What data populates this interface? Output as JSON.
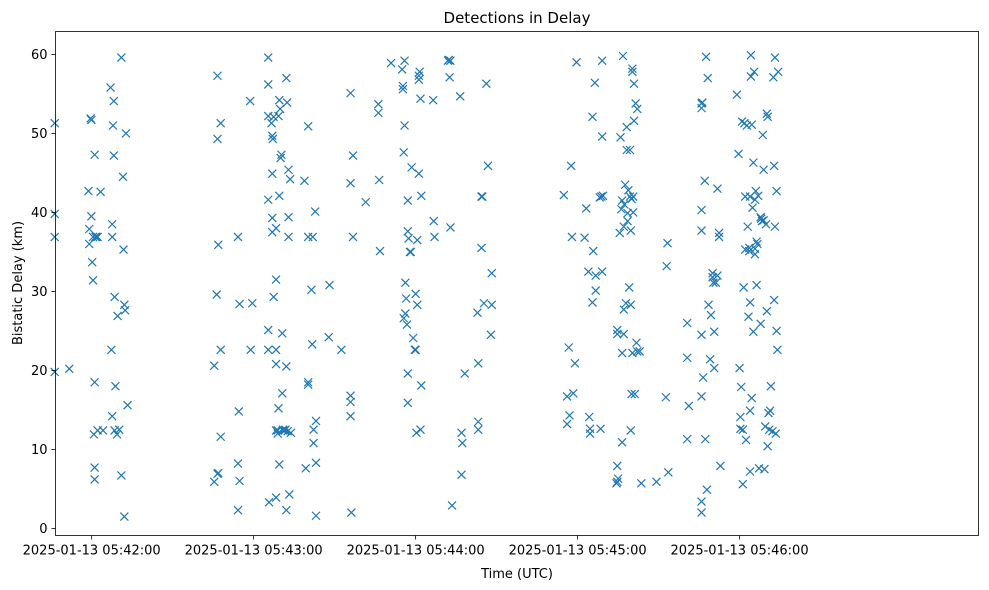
{
  "chart_data": {
    "type": "scatter",
    "title": "Detections in Delay",
    "xlabel": "Time (UTC)",
    "ylabel": "Bistatic Delay (km)",
    "marker": "x",
    "color": "#1f77b4",
    "x_unit": "seconds after 2025-01-13 05:41:00",
    "xlim": [
      46.6,
      388.5
    ],
    "ylim": [
      -0.9,
      62.9
    ],
    "x_ticks": [
      {
        "value": 60,
        "label": "2025-01-13 05:42:00"
      },
      {
        "value": 120,
        "label": "2025-01-13 05:43:00"
      },
      {
        "value": 180,
        "label": "2025-01-13 05:44:00"
      },
      {
        "value": 240,
        "label": "2025-01-13 05:45:00"
      },
      {
        "value": 300,
        "label": "2025-01-13 05:46:00"
      }
    ],
    "y_ticks": [
      {
        "value": 0,
        "label": "0"
      },
      {
        "value": 10,
        "label": "10"
      },
      {
        "value": 20,
        "label": "20"
      },
      {
        "value": 30,
        "label": "30"
      },
      {
        "value": 40,
        "label": "40"
      },
      {
        "value": 50,
        "label": "50"
      },
      {
        "value": 60,
        "label": "60"
      }
    ],
    "points": [
      [
        46.3,
        51.3
      ],
      [
        46.3,
        39.8
      ],
      [
        46.3,
        36.9
      ],
      [
        46.3,
        19.8
      ],
      [
        51.7,
        20.2
      ],
      [
        58.8,
        42.7
      ],
      [
        59.1,
        36.0
      ],
      [
        59.1,
        37.9
      ],
      [
        59.6,
        51.9
      ],
      [
        59.9,
        51.7
      ],
      [
        59.9,
        39.5
      ],
      [
        60.2,
        33.7
      ],
      [
        60.5,
        36.9
      ],
      [
        60.5,
        31.4
      ],
      [
        60.8,
        11.9
      ],
      [
        61.1,
        47.3
      ],
      [
        61.1,
        18.5
      ],
      [
        61.1,
        7.7
      ],
      [
        61.1,
        6.2
      ],
      [
        61.4,
        36.9
      ],
      [
        61.7,
        36.9
      ],
      [
        62.2,
        36.9
      ],
      [
        62.2,
        12.4
      ],
      [
        63.3,
        42.6
      ],
      [
        64.2,
        12.4
      ],
      [
        67.0,
        55.8
      ],
      [
        67.3,
        22.6
      ],
      [
        67.6,
        38.5
      ],
      [
        67.6,
        36.9
      ],
      [
        67.6,
        14.2
      ],
      [
        67.9,
        51.0
      ],
      [
        68.2,
        54.1
      ],
      [
        68.2,
        47.2
      ],
      [
        68.5,
        29.3
      ],
      [
        68.5,
        12.4
      ],
      [
        68.8,
        18.0
      ],
      [
        69.4,
        11.9
      ],
      [
        69.6,
        26.9
      ],
      [
        70.2,
        12.5
      ],
      [
        71.0,
        59.6
      ],
      [
        71.0,
        6.7
      ],
      [
        71.6,
        44.5
      ],
      [
        71.8,
        35.3
      ],
      [
        72.1,
        1.5
      ],
      [
        72.1,
        28.3
      ],
      [
        72.4,
        27.6
      ],
      [
        72.7,
        50.0
      ],
      [
        73.3,
        15.6
      ],
      [
        105.4,
        20.6
      ],
      [
        105.4,
        5.9
      ],
      [
        106.3,
        29.6
      ],
      [
        106.6,
        57.3
      ],
      [
        106.6,
        6.9
      ],
      [
        106.6,
        49.3
      ],
      [
        106.9,
        35.9
      ],
      [
        106.9,
        7.0
      ],
      [
        107.8,
        51.3
      ],
      [
        107.8,
        22.6
      ],
      [
        107.8,
        11.6
      ],
      [
        114.2,
        36.9
      ],
      [
        114.2,
        8.2
      ],
      [
        114.2,
        2.3
      ],
      [
        114.5,
        14.8
      ],
      [
        114.8,
        28.4
      ],
      [
        114.8,
        6.0
      ],
      [
        118.7,
        54.1
      ],
      [
        118.9,
        22.6
      ],
      [
        119.5,
        28.5
      ],
      [
        125.4,
        59.6
      ],
      [
        125.4,
        56.2
      ],
      [
        125.4,
        52.2
      ],
      [
        125.4,
        41.6
      ],
      [
        125.4,
        25.1
      ],
      [
        125.4,
        22.6
      ],
      [
        125.7,
        3.3
      ],
      [
        126.6,
        51.3
      ],
      [
        126.9,
        49.7
      ],
      [
        126.9,
        44.9
      ],
      [
        126.9,
        39.3
      ],
      [
        126.9,
        37.5
      ],
      [
        127.1,
        49.3
      ],
      [
        127.4,
        52.1
      ],
      [
        127.4,
        29.3
      ],
      [
        128.3,
        38.0
      ],
      [
        128.3,
        31.5
      ],
      [
        128.3,
        22.6
      ],
      [
        128.3,
        20.8
      ],
      [
        128.3,
        12.4
      ],
      [
        128.3,
        3.9
      ],
      [
        128.9,
        12.4
      ],
      [
        128.9,
        12.0
      ],
      [
        129.2,
        52.2
      ],
      [
        129.2,
        15.2
      ],
      [
        129.5,
        54.2
      ],
      [
        129.5,
        42.1
      ],
      [
        129.5,
        8.1
      ],
      [
        129.8,
        53.1
      ],
      [
        130.0,
        46.9
      ],
      [
        130.3,
        47.3
      ],
      [
        130.6,
        24.7
      ],
      [
        130.6,
        17.1
      ],
      [
        130.9,
        12.4
      ],
      [
        130.9,
        12.5
      ],
      [
        131.5,
        12.4
      ],
      [
        131.8,
        12.5
      ],
      [
        132.1,
        57.0
      ],
      [
        132.1,
        2.3
      ],
      [
        132.1,
        20.5
      ],
      [
        132.4,
        53.9
      ],
      [
        132.6,
        12.3
      ],
      [
        132.9,
        45.4
      ],
      [
        132.9,
        39.4
      ],
      [
        132.9,
        36.9
      ],
      [
        133.2,
        4.3
      ],
      [
        133.5,
        44.2
      ],
      [
        133.8,
        12.1
      ],
      [
        138.8,
        44.0
      ],
      [
        139.3,
        7.6
      ],
      [
        140.2,
        50.9
      ],
      [
        140.2,
        36.9
      ],
      [
        140.2,
        18.5
      ],
      [
        140.2,
        18.2
      ],
      [
        141.4,
        30.2
      ],
      [
        141.7,
        23.3
      ],
      [
        141.9,
        36.9
      ],
      [
        142.2,
        12.5
      ],
      [
        142.2,
        10.8
      ],
      [
        142.8,
        40.1
      ],
      [
        143.1,
        13.6
      ],
      [
        143.1,
        8.3
      ],
      [
        143.1,
        1.6
      ],
      [
        148.1,
        30.8
      ],
      [
        147.8,
        24.2
      ],
      [
        152.5,
        22.6
      ],
      [
        155.9,
        55.1
      ],
      [
        155.9,
        43.7
      ],
      [
        155.9,
        16.8
      ],
      [
        155.9,
        16.0
      ],
      [
        155.9,
        14.2
      ],
      [
        156.2,
        2.0
      ],
      [
        156.8,
        47.2
      ],
      [
        156.8,
        36.9
      ],
      [
        161.5,
        41.3
      ],
      [
        166.2,
        53.7
      ],
      [
        166.2,
        52.6
      ],
      [
        166.5,
        44.1
      ],
      [
        166.8,
        35.1
      ],
      [
        170.9,
        58.9
      ],
      [
        175.0,
        58.1
      ],
      [
        175.3,
        56.0
      ],
      [
        175.3,
        55.6
      ],
      [
        175.6,
        26.6
      ],
      [
        175.6,
        47.6
      ],
      [
        175.9,
        59.2
      ],
      [
        175.9,
        51.0
      ],
      [
        176.2,
        27.2
      ],
      [
        176.2,
        31.1
      ],
      [
        176.5,
        29.1
      ],
      [
        176.8,
        25.8
      ],
      [
        177.1,
        37.6
      ],
      [
        177.1,
        19.6
      ],
      [
        177.1,
        15.9
      ],
      [
        177.1,
        41.5
      ],
      [
        177.4,
        36.7
      ],
      [
        177.9,
        35.0
      ],
      [
        178.2,
        35.0
      ],
      [
        178.5,
        45.7
      ],
      [
        179.1,
        24.1
      ],
      [
        179.7,
        22.6
      ],
      [
        180.0,
        22.6
      ],
      [
        180.0,
        29.7
      ],
      [
        180.3,
        12.1
      ],
      [
        180.6,
        36.5
      ],
      [
        180.6,
        28.3
      ],
      [
        181.2,
        56.8
      ],
      [
        181.2,
        57.3
      ],
      [
        181.2,
        44.9
      ],
      [
        181.5,
        57.8
      ],
      [
        181.8,
        12.5
      ],
      [
        181.8,
        54.4
      ],
      [
        182.1,
        42.1
      ],
      [
        182.1,
        18.1
      ],
      [
        186.5,
        54.2
      ],
      [
        186.7,
        38.9
      ],
      [
        187.0,
        36.9
      ],
      [
        192.0,
        59.2
      ],
      [
        192.3,
        59.3
      ],
      [
        192.6,
        57.1
      ],
      [
        192.9,
        59.2
      ],
      [
        192.9,
        38.1
      ],
      [
        193.5,
        2.9
      ],
      [
        196.5,
        54.7
      ],
      [
        197.0,
        12.1
      ],
      [
        197.0,
        6.8
      ],
      [
        197.3,
        10.8
      ],
      [
        198.2,
        19.6
      ],
      [
        202.9,
        27.3
      ],
      [
        203.2,
        13.5
      ],
      [
        203.2,
        12.5
      ],
      [
        203.2,
        20.9
      ],
      [
        204.4,
        42.0
      ],
      [
        204.4,
        35.5
      ],
      [
        204.7,
        42.0
      ],
      [
        205.3,
        28.5
      ],
      [
        206.2,
        56.3
      ],
      [
        206.8,
        45.9
      ],
      [
        207.9,
        24.5
      ],
      [
        208.2,
        32.3
      ],
      [
        208.2,
        28.3
      ],
      [
        234.9,
        42.2
      ],
      [
        236.1,
        13.2
      ],
      [
        236.1,
        16.7
      ],
      [
        236.7,
        22.9
      ],
      [
        237.0,
        14.3
      ],
      [
        237.6,
        45.9
      ],
      [
        237.9,
        36.9
      ],
      [
        238.4,
        17.1
      ],
      [
        239.0,
        20.9
      ],
      [
        239.6,
        59.0
      ],
      [
        242.6,
        36.8
      ],
      [
        243.2,
        40.5
      ],
      [
        244.0,
        32.5
      ],
      [
        244.3,
        14.1
      ],
      [
        244.6,
        12.6
      ],
      [
        244.6,
        12.0
      ],
      [
        245.5,
        52.1
      ],
      [
        245.5,
        28.6
      ],
      [
        245.8,
        35.1
      ],
      [
        246.4,
        56.4
      ],
      [
        246.7,
        32.0
      ],
      [
        246.7,
        30.1
      ],
      [
        248.2,
        41.9
      ],
      [
        248.5,
        12.6
      ],
      [
        248.8,
        42.0
      ],
      [
        249.1,
        59.2
      ],
      [
        249.1,
        32.5
      ],
      [
        249.1,
        49.6
      ],
      [
        249.4,
        42.1
      ],
      [
        254.7,
        25.1
      ],
      [
        254.7,
        24.6
      ],
      [
        254.4,
        5.7
      ],
      [
        254.7,
        5.9
      ],
      [
        254.7,
        7.9
      ],
      [
        255.0,
        6.3
      ],
      [
        255.6,
        37.4
      ],
      [
        255.9,
        49.5
      ],
      [
        256.2,
        40.4
      ],
      [
        256.5,
        22.2
      ],
      [
        256.5,
        41.5
      ],
      [
        256.5,
        10.9
      ],
      [
        256.8,
        59.8
      ],
      [
        257.1,
        27.7
      ],
      [
        257.1,
        24.6
      ],
      [
        257.1,
        38.2
      ],
      [
        257.3,
        41.0
      ],
      [
        257.6,
        43.5
      ],
      [
        257.9,
        28.5
      ],
      [
        258.2,
        47.9
      ],
      [
        258.2,
        50.8
      ],
      [
        258.5,
        39.9
      ],
      [
        258.5,
        38.9
      ],
      [
        258.8,
        42.8
      ],
      [
        259.1,
        30.5
      ],
      [
        259.4,
        47.9
      ],
      [
        259.4,
        42.0
      ],
      [
        259.7,
        37.7
      ],
      [
        259.7,
        28.3
      ],
      [
        259.7,
        12.4
      ],
      [
        260.0,
        17.0
      ],
      [
        260.0,
        41.7
      ],
      [
        260.3,
        58.2
      ],
      [
        260.3,
        57.8
      ],
      [
        260.3,
        22.2
      ],
      [
        260.6,
        42.0
      ],
      [
        260.6,
        40.0
      ],
      [
        260.9,
        51.6
      ],
      [
        260.9,
        56.3
      ],
      [
        261.2,
        17.0
      ],
      [
        261.5,
        53.8
      ],
      [
        261.8,
        23.5
      ],
      [
        262.1,
        53.1
      ],
      [
        262.1,
        22.4
      ],
      [
        263.0,
        22.4
      ],
      [
        263.6,
        5.7
      ],
      [
        269.2,
        5.9
      ],
      [
        272.7,
        16.6
      ],
      [
        273.0,
        33.2
      ],
      [
        273.3,
        36.1
      ],
      [
        273.6,
        7.1
      ],
      [
        280.6,
        26.0
      ],
      [
        280.6,
        21.6
      ],
      [
        280.6,
        11.3
      ],
      [
        281.2,
        15.5
      ],
      [
        285.9,
        53.8
      ],
      [
        285.9,
        53.2
      ],
      [
        285.9,
        40.3
      ],
      [
        285.9,
        37.7
      ],
      [
        285.9,
        24.5
      ],
      [
        285.9,
        16.7
      ],
      [
        285.9,
        3.4
      ],
      [
        285.9,
        2.0
      ],
      [
        286.2,
        53.9
      ],
      [
        286.5,
        19.1
      ],
      [
        287.1,
        44.0
      ],
      [
        287.3,
        11.3
      ],
      [
        287.6,
        59.7
      ],
      [
        287.9,
        4.9
      ],
      [
        288.2,
        57.0
      ],
      [
        288.5,
        28.3
      ],
      [
        289.1,
        21.4
      ],
      [
        289.4,
        27.0
      ],
      [
        290.0,
        31.8
      ],
      [
        290.0,
        32.3
      ],
      [
        290.3,
        31.1
      ],
      [
        290.6,
        20.3
      ],
      [
        290.6,
        24.9
      ],
      [
        291.2,
        31.1
      ],
      [
        291.8,
        43.0
      ],
      [
        291.8,
        32.0
      ],
      [
        292.4,
        37.4
      ],
      [
        292.4,
        36.9
      ],
      [
        292.9,
        7.9
      ],
      [
        299.0,
        54.9
      ],
      [
        299.6,
        47.4
      ],
      [
        300.0,
        20.3
      ],
      [
        300.3,
        14.1
      ],
      [
        300.3,
        12.6
      ],
      [
        300.6,
        17.9
      ],
      [
        300.9,
        51.5
      ],
      [
        301.2,
        12.5
      ],
      [
        301.2,
        5.6
      ],
      [
        301.5,
        30.5
      ],
      [
        301.8,
        51.3
      ],
      [
        302.1,
        42.0
      ],
      [
        302.1,
        35.3
      ],
      [
        302.4,
        11.2
      ],
      [
        302.7,
        51.0
      ],
      [
        303.0,
        38.2
      ],
      [
        303.3,
        26.8
      ],
      [
        303.6,
        35.5
      ],
      [
        303.6,
        35.1
      ],
      [
        303.9,
        42.0
      ],
      [
        303.9,
        28.6
      ],
      [
        303.9,
        14.9
      ],
      [
        303.9,
        7.2
      ],
      [
        304.2,
        59.9
      ],
      [
        304.2,
        57.2
      ],
      [
        304.5,
        51.1
      ],
      [
        304.5,
        16.5
      ],
      [
        304.8,
        40.6
      ],
      [
        305.1,
        24.9
      ],
      [
        305.1,
        46.3
      ],
      [
        305.4,
        57.8
      ],
      [
        305.7,
        41.6
      ],
      [
        305.7,
        35.4
      ],
      [
        305.7,
        34.7
      ],
      [
        306.0,
        42.7
      ],
      [
        306.3,
        36.3
      ],
      [
        306.3,
        30.8
      ],
      [
        306.6,
        36.0
      ],
      [
        306.9,
        42.1
      ],
      [
        307.2,
        7.6
      ],
      [
        307.8,
        39.4
      ],
      [
        307.8,
        25.9
      ],
      [
        308.0,
        39.2
      ],
      [
        308.3,
        38.9
      ],
      [
        308.6,
        49.8
      ],
      [
        308.9,
        45.4
      ],
      [
        308.9,
        39.0
      ],
      [
        309.2,
        7.5
      ],
      [
        309.5,
        12.9
      ],
      [
        309.8,
        38.5
      ],
      [
        310.1,
        27.5
      ],
      [
        310.1,
        52.5
      ],
      [
        310.4,
        52.1
      ],
      [
        310.4,
        10.4
      ],
      [
        310.7,
        14.6
      ],
      [
        311.0,
        12.5
      ],
      [
        311.3,
        14.9
      ],
      [
        311.6,
        18.0
      ],
      [
        312.2,
        12.3
      ],
      [
        312.5,
        57.1
      ],
      [
        312.8,
        45.9
      ],
      [
        312.8,
        28.9
      ],
      [
        313.1,
        59.6
      ],
      [
        313.1,
        38.2
      ],
      [
        313.4,
        12.0
      ],
      [
        313.7,
        25.0
      ],
      [
        313.7,
        42.7
      ],
      [
        314.0,
        22.6
      ],
      [
        314.3,
        57.8
      ]
    ]
  }
}
